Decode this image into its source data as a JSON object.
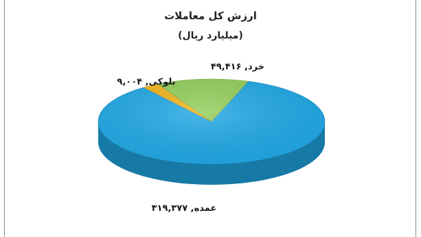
{
  "chart_data": {
    "type": "pie",
    "title": "ارزش کل معاملات",
    "subtitle": "(میلیارد ریال)",
    "slices": [
      {
        "label": "عمده, ۳۱۹,۳۷۷",
        "name": "عمده",
        "value": 319377,
        "color": "#20a8e6"
      },
      {
        "label": "بلوکی, ۹,۰۰۴",
        "name": "بلوکی",
        "value": 9004,
        "color": "#f2b61b"
      },
      {
        "label": "خرد, ۴۹,۴۱۶",
        "name": "خرد",
        "value": 49416,
        "color": "#93cf5b"
      }
    ]
  }
}
